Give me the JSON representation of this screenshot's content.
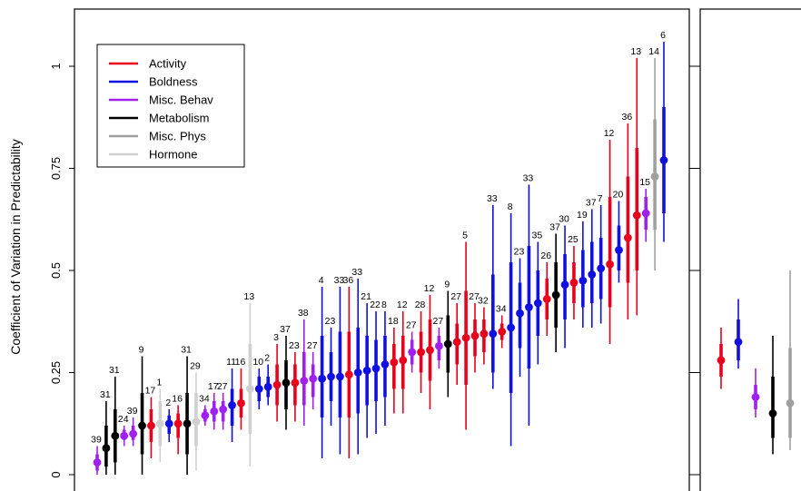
{
  "chart_data": {
    "type": "scatter",
    "ylabel": "Coefficient of Variation in Predictability",
    "ylim": [
      0,
      1.1
    ],
    "yticks": [
      "0",
      "0.25",
      "0.5",
      "0.75",
      "1"
    ],
    "legend_position": "top-left",
    "legend": [
      {
        "name": "Activity",
        "color": "#e8001c"
      },
      {
        "name": "Boldness",
        "color": "#1010e0"
      },
      {
        "name": "Misc. Behav",
        "color": "#a020f0"
      },
      {
        "name": "Metabolism",
        "color": "#000000"
      },
      {
        "name": "Misc. Phys",
        "color": "#a0a0a0"
      },
      {
        "name": "Hormone",
        "color": "#d0d0d0"
      }
    ],
    "series": [
      {
        "cat": 2,
        "n": "39",
        "y": 0.03,
        "lo": 0.0,
        "hi": 0.07,
        "lo50": 0.01,
        "hi50": 0.05
      },
      {
        "cat": 3,
        "n": "31",
        "y": 0.065,
        "lo": 0.0,
        "hi": 0.18,
        "lo50": 0.02,
        "hi50": 0.12
      },
      {
        "cat": 3,
        "n": "31",
        "y": 0.095,
        "lo": 0.0,
        "hi": 0.24,
        "lo50": 0.03,
        "hi50": 0.16
      },
      {
        "cat": 2,
        "n": "24",
        "y": 0.095,
        "lo": 0.07,
        "hi": 0.12,
        "lo50": 0.085,
        "hi50": 0.11
      },
      {
        "cat": 2,
        "n": "39",
        "y": 0.1,
        "lo": 0.07,
        "hi": 0.14,
        "lo50": 0.085,
        "hi50": 0.12
      },
      {
        "cat": 3,
        "n": "9",
        "y": 0.12,
        "lo": 0.0,
        "hi": 0.29,
        "lo50": 0.05,
        "hi50": 0.2
      },
      {
        "cat": 0,
        "n": "17",
        "y": 0.12,
        "lo": 0.04,
        "hi": 0.19,
        "lo50": 0.08,
        "hi50": 0.16
      },
      {
        "cat": 5,
        "n": "1",
        "y": 0.125,
        "lo": 0.03,
        "hi": 0.21,
        "lo50": 0.07,
        "hi50": 0.18
      },
      {
        "cat": 1,
        "n": "2",
        "y": 0.125,
        "lo": 0.08,
        "hi": 0.16,
        "lo50": 0.1,
        "hi50": 0.145
      },
      {
        "cat": 0,
        "n": "16",
        "y": 0.125,
        "lo": 0.05,
        "hi": 0.17,
        "lo50": 0.09,
        "hi50": 0.15
      },
      {
        "cat": 3,
        "n": "31",
        "y": 0.125,
        "lo": 0.0,
        "hi": 0.29,
        "lo50": 0.05,
        "hi50": 0.2
      },
      {
        "cat": 5,
        "n": "29",
        "y": 0.13,
        "lo": 0.01,
        "hi": 0.25,
        "lo50": 0.07,
        "hi50": 0.2
      },
      {
        "cat": 2,
        "n": "34",
        "y": 0.145,
        "lo": 0.12,
        "hi": 0.17,
        "lo50": 0.13,
        "hi50": 0.16
      },
      {
        "cat": 2,
        "n": "17",
        "y": 0.155,
        "lo": 0.11,
        "hi": 0.2,
        "lo50": 0.13,
        "hi50": 0.18
      },
      {
        "cat": 2,
        "n": "27",
        "y": 0.16,
        "lo": 0.11,
        "hi": 0.2,
        "lo50": 0.13,
        "hi50": 0.18
      },
      {
        "cat": 1,
        "n": "11",
        "y": 0.17,
        "lo": 0.08,
        "hi": 0.26,
        "lo50": 0.12,
        "hi50": 0.21
      },
      {
        "cat": 0,
        "n": "16",
        "y": 0.175,
        "lo": 0.11,
        "hi": 0.26,
        "lo50": 0.14,
        "hi50": 0.21
      },
      {
        "cat": 5,
        "n": "13",
        "y": 0.21,
        "lo": 0.02,
        "hi": 0.42,
        "lo50": 0.1,
        "hi50": 0.32
      },
      {
        "cat": 1,
        "n": "10",
        "y": 0.21,
        "lo": 0.16,
        "hi": 0.26,
        "lo50": 0.18,
        "hi50": 0.24
      },
      {
        "cat": 1,
        "n": "2",
        "y": 0.215,
        "lo": 0.17,
        "hi": 0.27,
        "lo50": 0.19,
        "hi50": 0.24
      },
      {
        "cat": 0,
        "n": "3",
        "y": 0.22,
        "lo": 0.13,
        "hi": 0.32,
        "lo50": 0.17,
        "hi50": 0.27
      },
      {
        "cat": 3,
        "n": "37",
        "y": 0.225,
        "lo": 0.11,
        "hi": 0.34,
        "lo50": 0.16,
        "hi50": 0.28
      },
      {
        "cat": 0,
        "n": "23",
        "y": 0.225,
        "lo": 0.13,
        "hi": 0.3,
        "lo50": 0.17,
        "hi50": 0.27
      },
      {
        "cat": 2,
        "n": "38",
        "y": 0.23,
        "lo": 0.12,
        "hi": 0.38,
        "lo50": 0.17,
        "hi50": 0.3
      },
      {
        "cat": 2,
        "n": "27",
        "y": 0.235,
        "lo": 0.16,
        "hi": 0.3,
        "lo50": 0.19,
        "hi50": 0.27
      },
      {
        "cat": 1,
        "n": "4",
        "y": 0.235,
        "lo": 0.04,
        "hi": 0.46,
        "lo50": 0.14,
        "hi50": 0.34
      },
      {
        "cat": 1,
        "n": "23",
        "y": 0.24,
        "lo": 0.12,
        "hi": 0.36,
        "lo50": 0.18,
        "hi50": 0.3
      },
      {
        "cat": 1,
        "n": "33",
        "y": 0.24,
        "lo": 0.05,
        "hi": 0.46,
        "lo50": 0.14,
        "hi50": 0.35
      },
      {
        "cat": 0,
        "n": "36",
        "y": 0.245,
        "lo": 0.04,
        "hi": 0.46,
        "lo50": 0.14,
        "hi50": 0.35
      },
      {
        "cat": 1,
        "n": "33",
        "y": 0.25,
        "lo": 0.05,
        "hi": 0.48,
        "lo50": 0.15,
        "hi50": 0.36
      },
      {
        "cat": 1,
        "n": "21",
        "y": 0.255,
        "lo": 0.09,
        "hi": 0.42,
        "lo50": 0.17,
        "hi50": 0.34
      },
      {
        "cat": 1,
        "n": "22",
        "y": 0.26,
        "lo": 0.1,
        "hi": 0.4,
        "lo50": 0.18,
        "hi50": 0.33
      },
      {
        "cat": 1,
        "n": "8",
        "y": 0.27,
        "lo": 0.12,
        "hi": 0.4,
        "lo50": 0.19,
        "hi50": 0.34
      },
      {
        "cat": 0,
        "n": "18",
        "y": 0.275,
        "lo": 0.15,
        "hi": 0.36,
        "lo50": 0.21,
        "hi50": 0.32
      },
      {
        "cat": 0,
        "n": "12",
        "y": 0.28,
        "lo": 0.15,
        "hi": 0.4,
        "lo50": 0.21,
        "hi50": 0.34
      },
      {
        "cat": 2,
        "n": "27",
        "y": 0.3,
        "lo": 0.25,
        "hi": 0.35,
        "lo50": 0.27,
        "hi50": 0.33
      },
      {
        "cat": 0,
        "n": "28",
        "y": 0.3,
        "lo": 0.2,
        "hi": 0.4,
        "lo50": 0.25,
        "hi50": 0.35
      },
      {
        "cat": 0,
        "n": "12",
        "y": 0.305,
        "lo": 0.16,
        "hi": 0.44,
        "lo50": 0.23,
        "hi50": 0.38
      },
      {
        "cat": 2,
        "n": "27",
        "y": 0.315,
        "lo": 0.26,
        "hi": 0.36,
        "lo50": 0.28,
        "hi50": 0.34
      },
      {
        "cat": 3,
        "n": "9",
        "y": 0.32,
        "lo": 0.19,
        "hi": 0.45,
        "lo50": 0.25,
        "hi50": 0.39
      },
      {
        "cat": 0,
        "n": "27",
        "y": 0.325,
        "lo": 0.22,
        "hi": 0.42,
        "lo50": 0.27,
        "hi50": 0.37
      },
      {
        "cat": 0,
        "n": "5",
        "y": 0.335,
        "lo": 0.11,
        "hi": 0.57,
        "lo50": 0.22,
        "hi50": 0.45
      },
      {
        "cat": 0,
        "n": "27",
        "y": 0.34,
        "lo": 0.25,
        "hi": 0.42,
        "lo50": 0.29,
        "hi50": 0.38
      },
      {
        "cat": 0,
        "n": "32",
        "y": 0.345,
        "lo": 0.27,
        "hi": 0.41,
        "lo50": 0.3,
        "hi50": 0.38
      },
      {
        "cat": 1,
        "n": "33",
        "y": 0.345,
        "lo": 0.21,
        "hi": 0.66,
        "lo50": 0.25,
        "hi50": 0.49
      },
      {
        "cat": 0,
        "n": "34",
        "y": 0.35,
        "lo": 0.31,
        "hi": 0.39,
        "lo50": 0.33,
        "hi50": 0.37
      },
      {
        "cat": 1,
        "n": "8",
        "y": 0.36,
        "lo": 0.07,
        "hi": 0.64,
        "lo50": 0.2,
        "hi50": 0.52
      },
      {
        "cat": 1,
        "n": "23",
        "y": 0.395,
        "lo": 0.24,
        "hi": 0.53,
        "lo50": 0.31,
        "hi50": 0.47
      },
      {
        "cat": 1,
        "n": "33",
        "y": 0.41,
        "lo": 0.12,
        "hi": 0.71,
        "lo50": 0.26,
        "hi50": 0.56
      },
      {
        "cat": 1,
        "n": "35",
        "y": 0.42,
        "lo": 0.27,
        "hi": 0.57,
        "lo50": 0.34,
        "hi50": 0.5
      },
      {
        "cat": 0,
        "n": "26",
        "y": 0.43,
        "lo": 0.34,
        "hi": 0.52,
        "lo50": 0.38,
        "hi50": 0.48
      },
      {
        "cat": 3,
        "n": "37",
        "y": 0.44,
        "lo": 0.3,
        "hi": 0.59,
        "lo50": 0.36,
        "hi50": 0.52
      },
      {
        "cat": 1,
        "n": "30",
        "y": 0.465,
        "lo": 0.31,
        "hi": 0.61,
        "lo50": 0.38,
        "hi50": 0.54
      },
      {
        "cat": 0,
        "n": "25",
        "y": 0.47,
        "lo": 0.38,
        "hi": 0.56,
        "lo50": 0.42,
        "hi50": 0.52
      },
      {
        "cat": 1,
        "n": "19",
        "y": 0.475,
        "lo": 0.36,
        "hi": 0.62,
        "lo50": 0.41,
        "hi50": 0.55
      },
      {
        "cat": 1,
        "n": "37",
        "y": 0.49,
        "lo": 0.36,
        "hi": 0.65,
        "lo50": 0.42,
        "hi50": 0.57
      },
      {
        "cat": 1,
        "n": "7",
        "y": 0.505,
        "lo": 0.37,
        "hi": 0.66,
        "lo50": 0.43,
        "hi50": 0.58
      },
      {
        "cat": 0,
        "n": "12",
        "y": 0.515,
        "lo": 0.32,
        "hi": 0.82,
        "lo50": 0.41,
        "hi50": 0.68
      },
      {
        "cat": 1,
        "n": "20",
        "y": 0.55,
        "lo": 0.47,
        "hi": 0.67,
        "lo50": 0.5,
        "hi50": 0.61
      },
      {
        "cat": 0,
        "n": "36",
        "y": 0.58,
        "lo": 0.38,
        "hi": 0.86,
        "lo50": 0.47,
        "hi50": 0.73
      },
      {
        "cat": 0,
        "n": "13",
        "y": 0.635,
        "lo": 0.39,
        "hi": 1.02,
        "lo50": 0.5,
        "hi50": 0.8
      },
      {
        "cat": 2,
        "n": "15",
        "y": 0.64,
        "lo": 0.57,
        "hi": 0.7,
        "lo50": 0.6,
        "hi50": 0.68
      },
      {
        "cat": 4,
        "n": "14",
        "y": 0.73,
        "lo": 0.5,
        "hi": 1.02,
        "lo50": 0.6,
        "hi50": 0.87
      },
      {
        "cat": 1,
        "n": "6",
        "y": 0.77,
        "lo": 0.57,
        "hi": 1.06,
        "lo50": 0.64,
        "hi50": 0.9
      }
    ],
    "panel2": [
      {
        "cat": 0,
        "y": 0.28,
        "lo": 0.21,
        "hi": 0.36,
        "lo50": 0.24,
        "hi50": 0.32
      },
      {
        "cat": 1,
        "y": 0.325,
        "lo": 0.26,
        "hi": 0.43,
        "lo50": 0.28,
        "hi50": 0.38
      },
      {
        "cat": 2,
        "y": 0.19,
        "lo": 0.14,
        "hi": 0.26,
        "lo50": 0.16,
        "hi50": 0.22
      },
      {
        "cat": 3,
        "y": 0.15,
        "lo": 0.05,
        "hi": 0.34,
        "lo50": 0.09,
        "hi50": 0.24
      },
      {
        "cat": 4,
        "y": 0.175,
        "lo": 0.06,
        "hi": 0.5,
        "lo50": 0.09,
        "hi50": 0.31
      }
    ]
  }
}
